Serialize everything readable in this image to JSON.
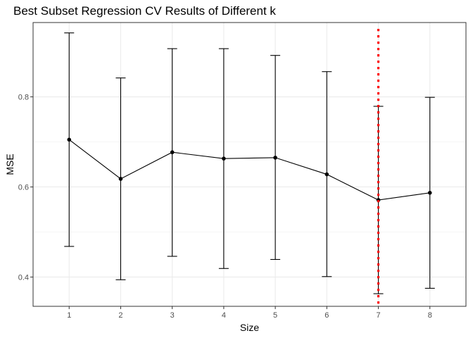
{
  "chart_data": {
    "type": "line",
    "title": "Best Subset Regression CV Results of Different k",
    "xlabel": "Size",
    "ylabel": "MSE",
    "x": [
      1,
      2,
      3,
      4,
      5,
      6,
      7,
      8
    ],
    "x_ticks": [
      "1",
      "2",
      "3",
      "4",
      "5",
      "6",
      "7",
      "8"
    ],
    "y_ticks": [
      0.4,
      0.6,
      0.8
    ],
    "y_tick_labels": [
      "0.4",
      "0.6",
      "0.8"
    ],
    "xlim": [
      0.3,
      8.7
    ],
    "ylim": [
      0.335,
      0.965
    ],
    "grid": true,
    "series": [
      {
        "mean": [
          0.705,
          0.618,
          0.677,
          0.663,
          0.665,
          0.628,
          0.571,
          0.587
        ],
        "upper": [
          0.942,
          0.842,
          0.907,
          0.907,
          0.892,
          0.856,
          0.779,
          0.799
        ],
        "lower": [
          0.468,
          0.394,
          0.446,
          0.419,
          0.439,
          0.401,
          0.363,
          0.375
        ],
        "color": "#000000"
      }
    ],
    "vline": {
      "x": 7,
      "color": "#ff0000",
      "style": "dotted"
    }
  }
}
